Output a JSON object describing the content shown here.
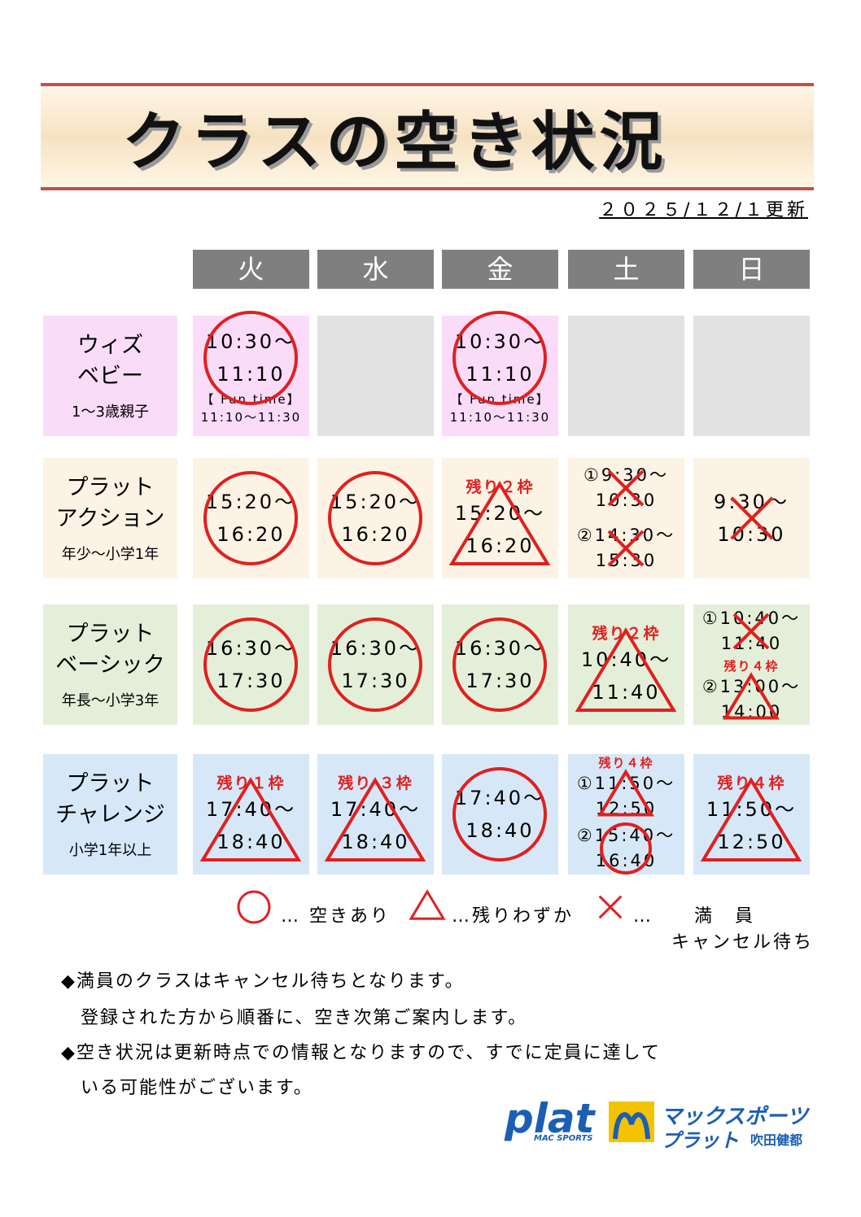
{
  "header": {
    "title": "クラスの空き状況",
    "updated": "２０２５/１２/１更新"
  },
  "days": [
    "火",
    "水",
    "金",
    "土",
    "日"
  ],
  "classes": [
    {
      "name": [
        "ウィズ",
        "ベビー"
      ],
      "age": "1～3歳親子",
      "color": "#fadcf8",
      "cells": [
        {
          "slots": [
            {
              "lines": [
                "10:30～",
                "11:10"
              ],
              "status": "circle",
              "extra": [
                "【 Fun time】",
                "11:10～11:30"
              ]
            }
          ]
        },
        null,
        {
          "slots": [
            {
              "lines": [
                "10:30～",
                "11:10"
              ],
              "status": "circle",
              "extra": [
                "【 Fun time】",
                "11:10～11:30"
              ]
            }
          ]
        },
        null,
        null
      ]
    },
    {
      "name": [
        "プラット",
        "アクション"
      ],
      "age": "年少～小学1年",
      "color": "#fdf3e4",
      "cells": [
        {
          "slots": [
            {
              "lines": [
                "15:20～",
                "16:20"
              ],
              "status": "circle"
            }
          ]
        },
        {
          "slots": [
            {
              "lines": [
                "15:20～",
                "16:20"
              ],
              "status": "circle"
            }
          ]
        },
        {
          "slots": [
            {
              "note": "残り２枠",
              "lines": [
                "15:20～",
                "16:20"
              ],
              "status": "triangle"
            }
          ]
        },
        {
          "slots": [
            {
              "lines": [
                "①9:30～",
                "10:30"
              ],
              "status": "cross"
            },
            {
              "lines": [
                "②14:30～",
                "15:30"
              ],
              "status": "cross"
            }
          ]
        },
        {
          "slots": [
            {
              "lines": [
                "9:30～",
                "10:30"
              ],
              "status": "cross"
            }
          ]
        }
      ]
    },
    {
      "name": [
        "プラット",
        "ベーシック"
      ],
      "age": "年長～小学3年",
      "color": "#e4efd9",
      "cells": [
        {
          "slots": [
            {
              "lines": [
                "16:30～",
                "17:30"
              ],
              "status": "circle"
            }
          ]
        },
        {
          "slots": [
            {
              "lines": [
                "16:30～",
                "17:30"
              ],
              "status": "circle"
            }
          ]
        },
        {
          "slots": [
            {
              "lines": [
                "16:30～",
                "17:30"
              ],
              "status": "circle"
            }
          ]
        },
        {
          "slots": [
            {
              "note": "残り２枠",
              "lines": [
                "10:40～",
                "11:40"
              ],
              "status": "triangle"
            }
          ]
        },
        {
          "slots": [
            {
              "lines": [
                "①10:40～",
                "11:40"
              ],
              "status": "cross"
            },
            {
              "note": "残り４枠",
              "lines": [
                "②13:00～",
                "14:00"
              ],
              "status": "triangle"
            }
          ]
        }
      ]
    },
    {
      "name": [
        "プラット",
        "チャレンジ"
      ],
      "age": "小学1年以上",
      "color": "#d6e8f8",
      "cells": [
        {
          "slots": [
            {
              "note": "残り１枠",
              "lines": [
                "17:40～",
                "18:40"
              ],
              "status": "triangle"
            }
          ]
        },
        {
          "slots": [
            {
              "note": "残り ３枠",
              "lines": [
                "17:40～",
                "18:40"
              ],
              "status": "triangle"
            }
          ]
        },
        {
          "slots": [
            {
              "lines": [
                "17:40～",
                "18:40"
              ],
              "status": "circle"
            }
          ]
        },
        {
          "slots": [
            {
              "note": "残り４枠",
              "lines": [
                "①11:50～",
                "12:50"
              ],
              "status": "triangle"
            },
            {
              "lines": [
                "②15:40～",
                "16:40"
              ],
              "status": "circle"
            }
          ]
        },
        {
          "slots": [
            {
              "note": "残り４枠",
              "lines": [
                "11:50～",
                "12:50"
              ],
              "status": "triangle"
            }
          ]
        }
      ]
    }
  ],
  "legend": [
    {
      "symbol": "circle",
      "label": [
        "… 空きあり"
      ]
    },
    {
      "symbol": "triangle",
      "label": [
        "…残りわずか"
      ]
    },
    {
      "symbol": "cross",
      "label": [
        "…　　満　員",
        "キャンセル待ち"
      ]
    }
  ],
  "notes": [
    "◆満員のクラスはキャンセル待ちとなります。",
    "　登録された方から順番に、空き次第ご案内します。",
    "◆空き状況は更新時点での情報となりますので、すでに定員に達して",
    "　いる可能性がございます。"
  ],
  "logo": {
    "brand": "plat",
    "sub": "MAC SPORTS",
    "line1": "マックスポーツ",
    "line2": "プラット",
    "place": "吹田健都"
  }
}
